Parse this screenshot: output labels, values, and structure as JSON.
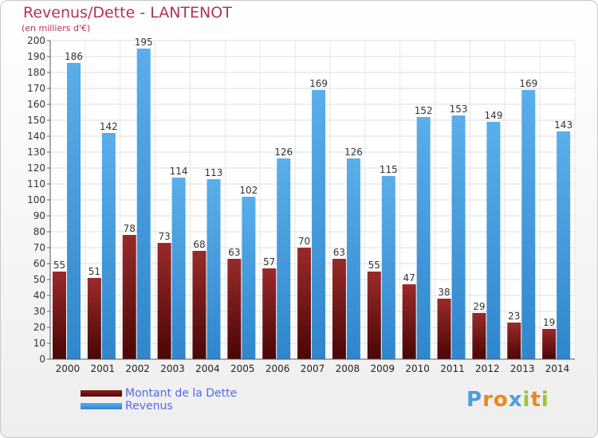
{
  "chart_data": {
    "type": "bar",
    "title": "Revenus/Dette - LANTENOT",
    "subtitle": "(en milliers d'€)",
    "categories": [
      "2000",
      "2001",
      "2002",
      "2003",
      "2004",
      "2005",
      "2006",
      "2007",
      "2008",
      "2009",
      "2010",
      "2011",
      "2012",
      "2013",
      "2014"
    ],
    "series": [
      {
        "name": "Montant de la Dette",
        "color": "#7a1a1a",
        "values": [
          55,
          51,
          78,
          73,
          68,
          63,
          57,
          70,
          63,
          55,
          47,
          38,
          29,
          23,
          19
        ]
      },
      {
        "name": "Revenus",
        "color": "#4a9de0",
        "values": [
          186,
          142,
          195,
          114,
          113,
          102,
          126,
          169,
          126,
          115,
          152,
          153,
          149,
          169,
          143
        ]
      }
    ],
    "ylim": [
      0,
      200
    ],
    "ytick_step": 10,
    "grid": true,
    "legend_position": "bottom-left"
  },
  "logo": {
    "letters": [
      {
        "char": "P",
        "color": "#4a9de0"
      },
      {
        "char": "r",
        "color": "#e8891e"
      },
      {
        "char": "o",
        "color": "#e8891e"
      },
      {
        "char": "x",
        "color": "#4a9de0"
      },
      {
        "char": "i",
        "color": "#9bc43a"
      },
      {
        "char": "t",
        "color": "#e8891e"
      },
      {
        "char": "i",
        "color": "#9bc43a"
      }
    ]
  }
}
